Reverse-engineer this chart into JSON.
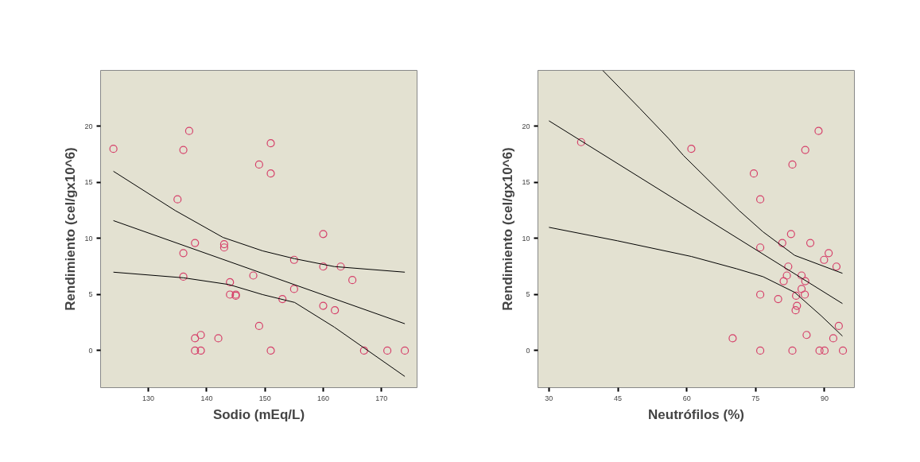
{
  "chart_data": [
    {
      "type": "scatter",
      "xlabel": "Sodio (mEq/L)",
      "ylabel": "Rendimiento (cel/gx10^6)",
      "xlim": [
        121.8,
        176.1
      ],
      "ylim": [
        -3.3,
        25.0
      ],
      "xticks": [
        130,
        140,
        150,
        160,
        170
      ],
      "yticks": [
        0,
        5,
        10,
        15,
        20
      ],
      "grid": false,
      "series": [
        {
          "marker": "circle",
          "color": "#d6406a",
          "x": [
            124,
            136,
            137,
            135,
            136,
            136,
            138,
            138,
            139,
            138,
            139,
            142,
            143,
            143,
            144,
            144,
            145,
            145,
            149,
            149,
            148,
            151,
            151,
            151,
            155,
            155,
            153,
            160,
            160,
            163,
            165,
            160,
            162,
            167,
            171,
            174
          ],
          "values": [
            18.0,
            17.9,
            19.6,
            13.5,
            6.6,
            8.7,
            9.6,
            1.1,
            1.4,
            0,
            0,
            1.1,
            9.5,
            9.2,
            6.1,
            5.0,
            5.0,
            4.9,
            16.6,
            2.2,
            6.7,
            18.5,
            15.8,
            0,
            8.1,
            5.5,
            4.6,
            10.4,
            7.5,
            7.5,
            6.3,
            4.0,
            3.6,
            0,
            0,
            0
          ]
        },
        {
          "type": "line",
          "color": "#000000",
          "x": [
            124,
            174
          ],
          "values": [
            11.6,
            2.4
          ]
        },
        {
          "type": "line",
          "color": "#000000",
          "x": [
            124,
            134.6,
            142.8,
            149.6,
            155.1,
            161.9,
            174
          ],
          "values": [
            16.0,
            12.5,
            10.1,
            8.9,
            8.2,
            7.5,
            7.0
          ]
        },
        {
          "type": "line",
          "color": "#000000",
          "x": [
            124,
            136,
            143.8,
            149.6,
            155.1,
            161.9,
            174
          ],
          "values": [
            7.0,
            6.5,
            5.9,
            5.0,
            4.3,
            2.1,
            -2.3
          ]
        }
      ]
    },
    {
      "type": "scatter",
      "xlabel": "Neutrófilos (%)",
      "ylabel": "Rendimiento (cel/gx10^6)",
      "xlim": [
        27.6,
        96.5
      ],
      "ylim": [
        -3.3,
        25.0
      ],
      "xticks": [
        30,
        45,
        60,
        75,
        90
      ],
      "yticks": [
        0,
        5,
        10,
        15,
        20
      ],
      "grid": false,
      "series": [
        {
          "marker": "circle",
          "color": "#d6406a",
          "x": [
            61,
            37,
            88.7,
            85.8,
            83.0,
            74.6,
            76.0,
            82.7,
            80.8,
            86.9,
            76.0,
            90.9,
            89.9,
            92.6,
            82.1,
            81.8,
            85.0,
            81.1,
            85.8,
            85.0,
            76.0,
            83.8,
            85.7,
            79.9,
            84.0,
            83.7,
            93.1,
            86.1,
            91.9,
            70.0,
            76.0,
            83.0,
            88.9,
            90.0,
            94.0
          ],
          "values": [
            18.0,
            18.6,
            19.6,
            17.9,
            16.6,
            15.8,
            13.5,
            10.4,
            9.6,
            9.6,
            9.2,
            8.7,
            8.1,
            7.5,
            7.5,
            6.7,
            6.7,
            6.2,
            6.2,
            5.5,
            5.0,
            4.9,
            5.0,
            4.6,
            4.0,
            3.6,
            2.2,
            1.4,
            1.1,
            1.1,
            0,
            0,
            0,
            0,
            0
          ]
        },
        {
          "type": "line",
          "color": "#000000",
          "x": [
            30,
            93.9
          ],
          "values": [
            20.5,
            4.2
          ]
        },
        {
          "type": "line",
          "color": "#000000",
          "x": [
            41.7,
            49.8,
            56.1,
            59.3,
            71.4,
            76.6,
            83.5,
            93.9
          ],
          "values": [
            25.0,
            21.6,
            18.9,
            17.4,
            12.5,
            10.6,
            8.5,
            6.9
          ]
        },
        {
          "type": "line",
          "color": "#000000",
          "x": [
            30,
            44.9,
            61.0,
            70.9,
            76.6,
            83.5,
            89.3,
            93.9
          ],
          "values": [
            11.0,
            9.8,
            8.4,
            7.3,
            6.6,
            5.2,
            3.1,
            1.3
          ]
        }
      ]
    }
  ]
}
